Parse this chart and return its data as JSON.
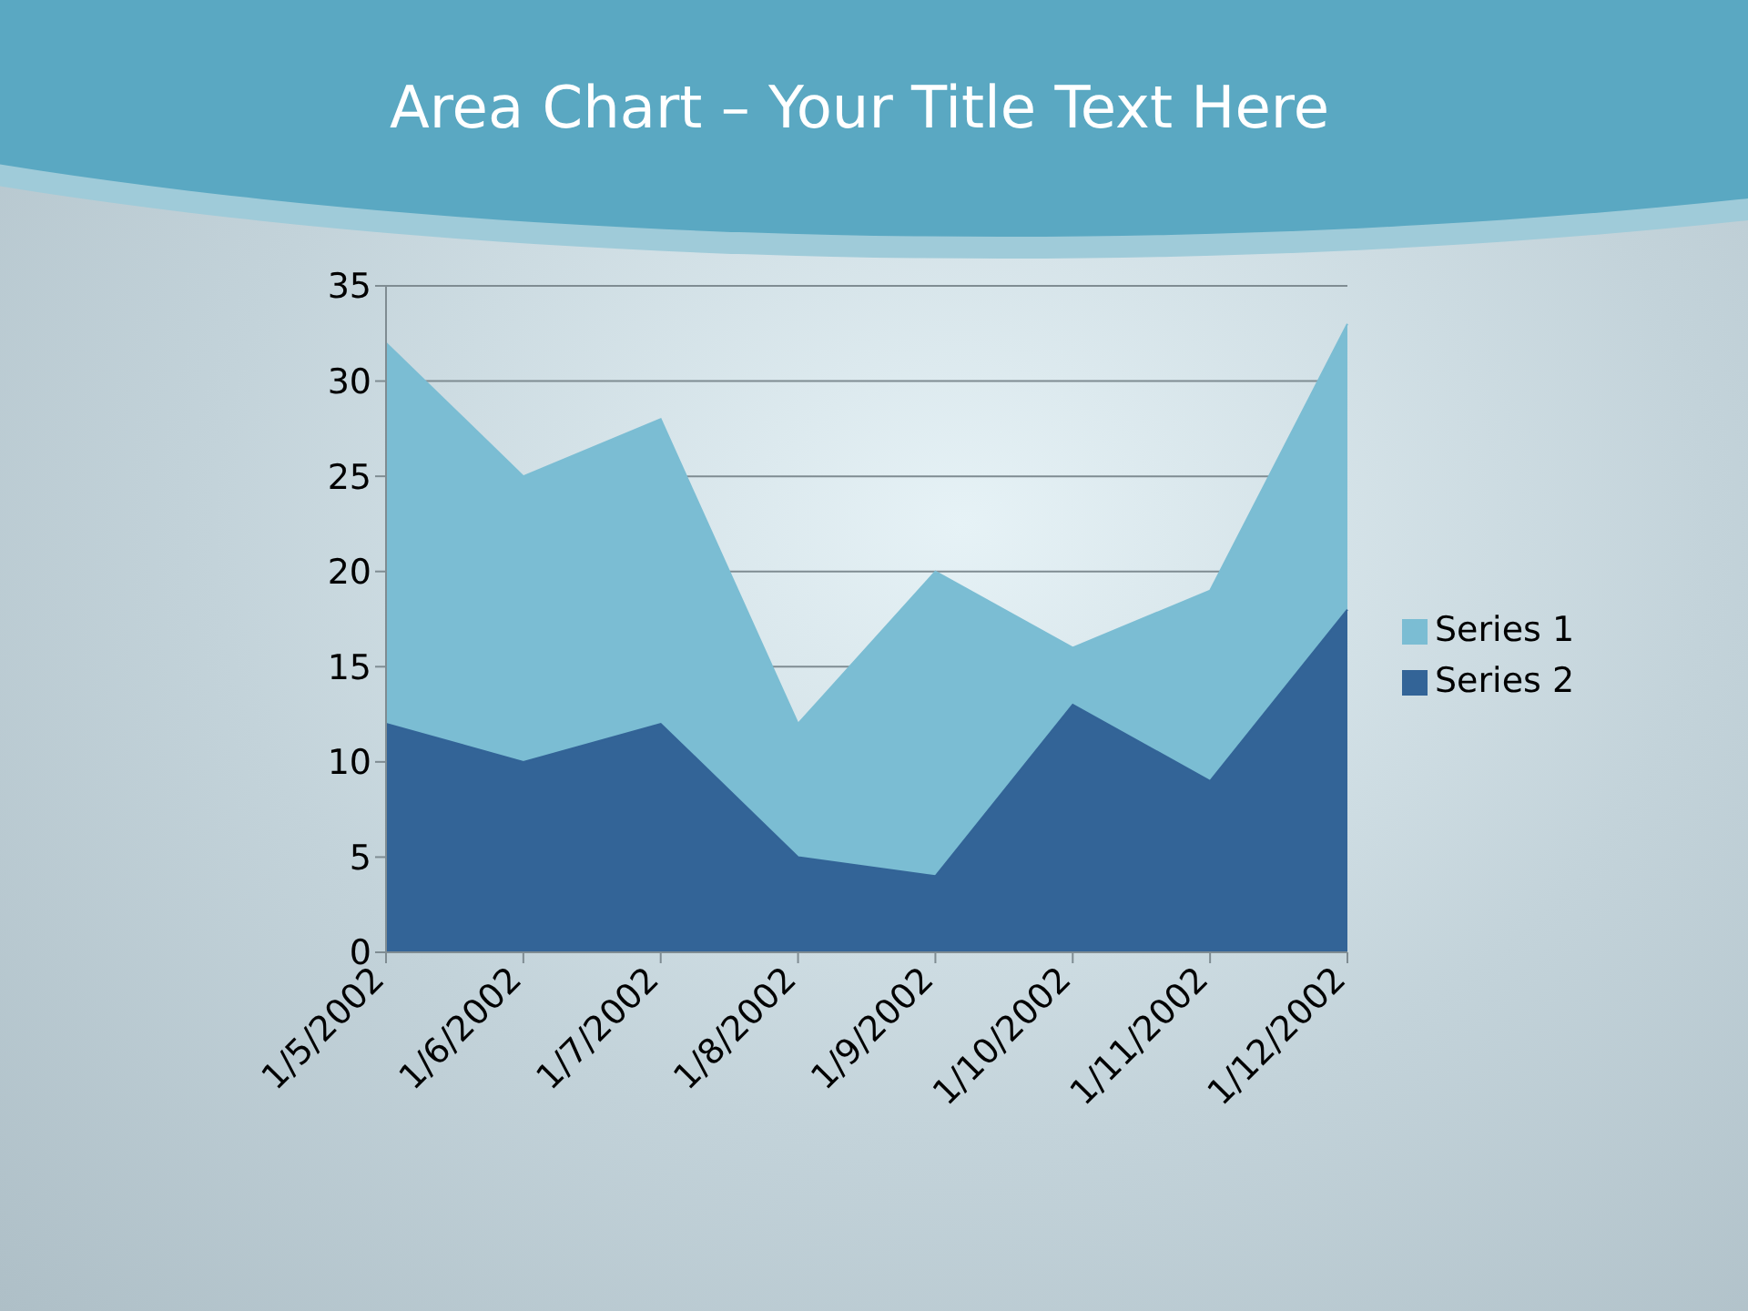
{
  "chart_data": {
    "type": "area",
    "title": "Area Chart – Your Title Text Here",
    "categories": [
      "1/5/2002",
      "1/6/2002",
      "1/7/2002",
      "1/8/2002",
      "1/9/2002",
      "1/10/2002",
      "1/11/2002",
      "1/12/2002"
    ],
    "series": [
      {
        "name": "Series 1",
        "color": "#7bbdd3",
        "values": [
          32,
          25,
          28,
          12,
          20,
          16,
          19,
          33
        ]
      },
      {
        "name": "Series 2",
        "color": "#336497",
        "values": [
          12,
          10,
          12,
          5,
          4,
          13,
          9,
          18
        ]
      }
    ],
    "ylim": [
      0,
      35
    ],
    "yticks": [
      0,
      5,
      10,
      15,
      20,
      25,
      30,
      35
    ],
    "grid": "y",
    "legend": "right"
  }
}
